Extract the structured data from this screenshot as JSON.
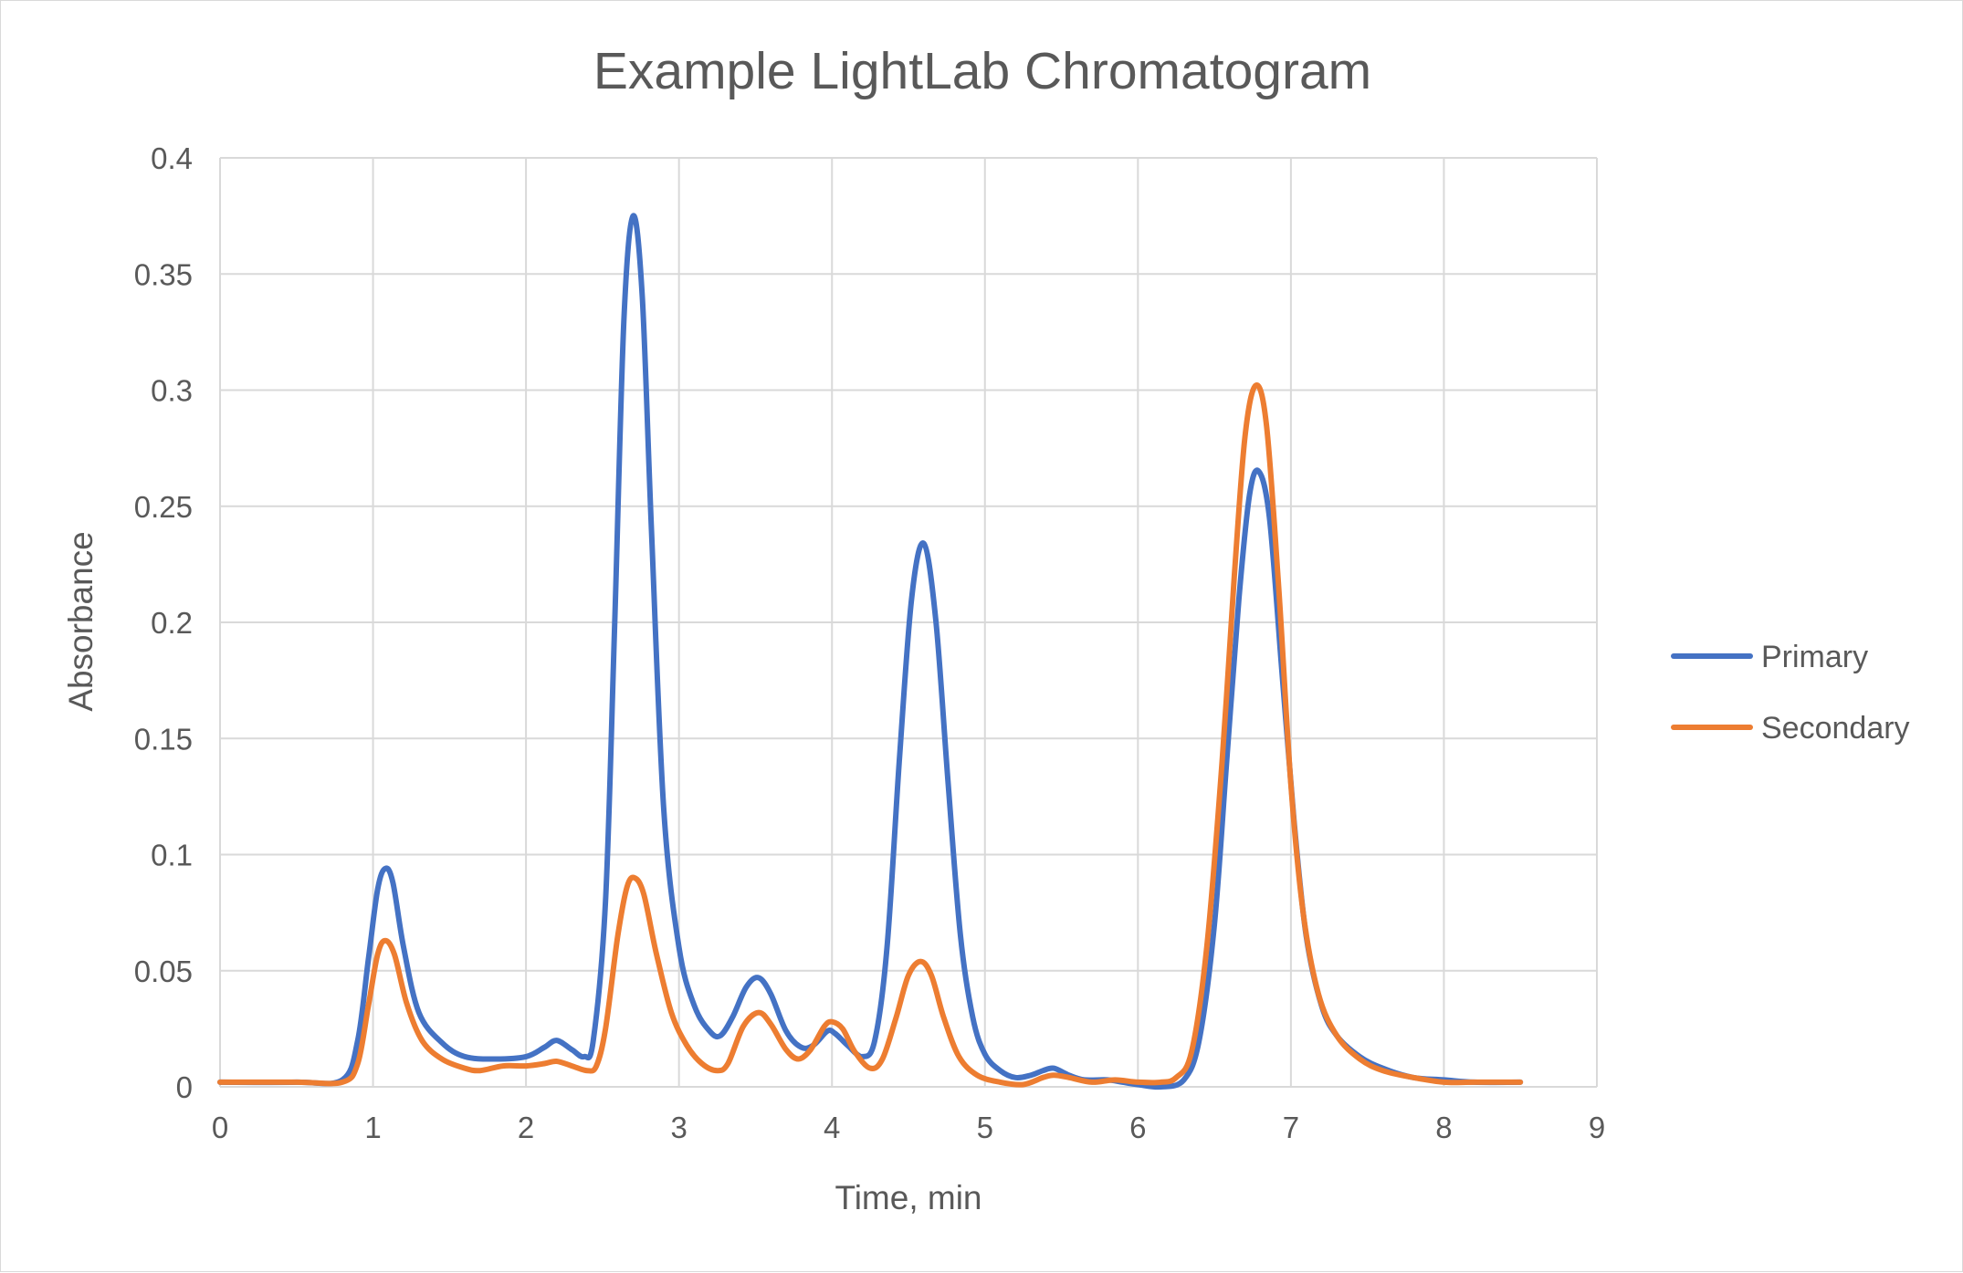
{
  "chart_data": {
    "type": "line",
    "title": "Example LightLab Chromatogram",
    "xlabel": "Time, min",
    "ylabel": "Absorbance",
    "xlim": [
      0,
      9
    ],
    "ylim": [
      0,
      0.4
    ],
    "x_ticks": [
      0,
      1,
      2,
      3,
      4,
      5,
      6,
      7,
      8,
      9
    ],
    "x_tick_labels": [
      "0",
      "1",
      "2",
      "3",
      "4",
      "5",
      "6",
      "7",
      "8",
      "9"
    ],
    "y_ticks": [
      0,
      0.05,
      0.1,
      0.15,
      0.2,
      0.25,
      0.3,
      0.35,
      0.4
    ],
    "y_tick_labels": [
      "0",
      "0.05",
      "0.1",
      "0.15",
      "0.2",
      "0.25",
      "0.3",
      "0.35",
      "0.4"
    ],
    "grid": true,
    "legend_position": "right",
    "series": [
      {
        "name": "Primary",
        "color": "#4472C4",
        "points": [
          [
            0,
            0.002
          ],
          [
            0.5,
            0.002
          ],
          [
            0.8,
            0.003
          ],
          [
            0.9,
            0.02
          ],
          [
            0.97,
            0.055
          ],
          [
            1.03,
            0.085
          ],
          [
            1.08,
            0.094
          ],
          [
            1.13,
            0.088
          ],
          [
            1.2,
            0.06
          ],
          [
            1.3,
            0.032
          ],
          [
            1.45,
            0.019
          ],
          [
            1.6,
            0.013
          ],
          [
            1.8,
            0.012
          ],
          [
            2.0,
            0.013
          ],
          [
            2.12,
            0.017
          ],
          [
            2.2,
            0.02
          ],
          [
            2.3,
            0.016
          ],
          [
            2.38,
            0.013
          ],
          [
            2.44,
            0.02
          ],
          [
            2.52,
            0.08
          ],
          [
            2.58,
            0.2
          ],
          [
            2.64,
            0.33
          ],
          [
            2.7,
            0.375
          ],
          [
            2.76,
            0.34
          ],
          [
            2.82,
            0.24
          ],
          [
            2.9,
            0.12
          ],
          [
            3.0,
            0.06
          ],
          [
            3.1,
            0.035
          ],
          [
            3.2,
            0.024
          ],
          [
            3.27,
            0.022
          ],
          [
            3.35,
            0.03
          ],
          [
            3.44,
            0.043
          ],
          [
            3.52,
            0.047
          ],
          [
            3.6,
            0.04
          ],
          [
            3.7,
            0.024
          ],
          [
            3.8,
            0.017
          ],
          [
            3.88,
            0.018
          ],
          [
            3.97,
            0.024
          ],
          [
            4.02,
            0.023
          ],
          [
            4.1,
            0.018
          ],
          [
            4.2,
            0.013
          ],
          [
            4.28,
            0.02
          ],
          [
            4.36,
            0.06
          ],
          [
            4.44,
            0.14
          ],
          [
            4.52,
            0.21
          ],
          [
            4.6,
            0.234
          ],
          [
            4.68,
            0.2
          ],
          [
            4.76,
            0.13
          ],
          [
            4.84,
            0.065
          ],
          [
            4.92,
            0.03
          ],
          [
            5.0,
            0.014
          ],
          [
            5.1,
            0.007
          ],
          [
            5.2,
            0.004
          ],
          [
            5.3,
            0.005
          ],
          [
            5.38,
            0.007
          ],
          [
            5.45,
            0.008
          ],
          [
            5.55,
            0.005
          ],
          [
            5.65,
            0.003
          ],
          [
            5.8,
            0.003
          ],
          [
            5.9,
            0.002
          ],
          [
            6.0,
            0.001
          ],
          [
            6.15,
            0.0
          ],
          [
            6.3,
            0.003
          ],
          [
            6.4,
            0.02
          ],
          [
            6.5,
            0.07
          ],
          [
            6.58,
            0.14
          ],
          [
            6.66,
            0.21
          ],
          [
            6.73,
            0.255
          ],
          [
            6.79,
            0.265
          ],
          [
            6.86,
            0.245
          ],
          [
            6.94,
            0.18
          ],
          [
            7.02,
            0.115
          ],
          [
            7.1,
            0.065
          ],
          [
            7.2,
            0.035
          ],
          [
            7.3,
            0.022
          ],
          [
            7.45,
            0.013
          ],
          [
            7.6,
            0.008
          ],
          [
            7.8,
            0.004
          ],
          [
            8.0,
            0.003
          ],
          [
            8.2,
            0.002
          ],
          [
            8.5,
            0.002
          ]
        ]
      },
      {
        "name": "Secondary",
        "color": "#ED7D31",
        "points": [
          [
            0,
            0.002
          ],
          [
            0.5,
            0.002
          ],
          [
            0.8,
            0.002
          ],
          [
            0.9,
            0.01
          ],
          [
            0.97,
            0.035
          ],
          [
            1.03,
            0.057
          ],
          [
            1.08,
            0.063
          ],
          [
            1.14,
            0.057
          ],
          [
            1.22,
            0.036
          ],
          [
            1.32,
            0.02
          ],
          [
            1.45,
            0.012
          ],
          [
            1.6,
            0.008
          ],
          [
            1.7,
            0.007
          ],
          [
            1.85,
            0.009
          ],
          [
            2.0,
            0.009
          ],
          [
            2.12,
            0.01
          ],
          [
            2.2,
            0.011
          ],
          [
            2.3,
            0.009
          ],
          [
            2.4,
            0.007
          ],
          [
            2.46,
            0.009
          ],
          [
            2.52,
            0.025
          ],
          [
            2.6,
            0.065
          ],
          [
            2.66,
            0.086
          ],
          [
            2.71,
            0.09
          ],
          [
            2.77,
            0.083
          ],
          [
            2.85,
            0.058
          ],
          [
            2.95,
            0.032
          ],
          [
            3.05,
            0.018
          ],
          [
            3.15,
            0.01
          ],
          [
            3.25,
            0.007
          ],
          [
            3.32,
            0.01
          ],
          [
            3.42,
            0.026
          ],
          [
            3.52,
            0.032
          ],
          [
            3.6,
            0.027
          ],
          [
            3.7,
            0.016
          ],
          [
            3.78,
            0.012
          ],
          [
            3.86,
            0.016
          ],
          [
            3.95,
            0.026
          ],
          [
            4.0,
            0.028
          ],
          [
            4.07,
            0.025
          ],
          [
            4.15,
            0.015
          ],
          [
            4.25,
            0.008
          ],
          [
            4.33,
            0.012
          ],
          [
            4.42,
            0.03
          ],
          [
            4.5,
            0.048
          ],
          [
            4.58,
            0.054
          ],
          [
            4.65,
            0.048
          ],
          [
            4.73,
            0.03
          ],
          [
            4.83,
            0.013
          ],
          [
            4.95,
            0.005
          ],
          [
            5.1,
            0.002
          ],
          [
            5.25,
            0.001
          ],
          [
            5.38,
            0.004
          ],
          [
            5.45,
            0.005
          ],
          [
            5.55,
            0.004
          ],
          [
            5.7,
            0.002
          ],
          [
            5.85,
            0.003
          ],
          [
            6.0,
            0.002
          ],
          [
            6.15,
            0.002
          ],
          [
            6.25,
            0.004
          ],
          [
            6.35,
            0.015
          ],
          [
            6.45,
            0.06
          ],
          [
            6.55,
            0.14
          ],
          [
            6.63,
            0.22
          ],
          [
            6.7,
            0.28
          ],
          [
            6.77,
            0.302
          ],
          [
            6.84,
            0.285
          ],
          [
            6.92,
            0.215
          ],
          [
            7.0,
            0.13
          ],
          [
            7.08,
            0.075
          ],
          [
            7.18,
            0.04
          ],
          [
            7.3,
            0.022
          ],
          [
            7.45,
            0.012
          ],
          [
            7.6,
            0.007
          ],
          [
            7.8,
            0.004
          ],
          [
            8.0,
            0.002
          ],
          [
            8.2,
            0.002
          ],
          [
            8.5,
            0.002
          ]
        ]
      }
    ]
  }
}
